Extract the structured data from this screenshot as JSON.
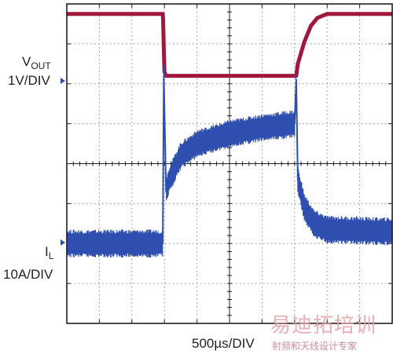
{
  "chart_data": {
    "type": "line",
    "title": "",
    "x_scale": {
      "label": "500µs/DIV",
      "divisions": 10,
      "units_per_div": 0.5,
      "unit": "ms"
    },
    "grid": true,
    "series": [
      {
        "name": "VOUT",
        "color": "#a0183c",
        "scale_label": "1V/DIV",
        "units": "div",
        "points": [
          [
            0.0,
            7.75
          ],
          [
            2.95,
            7.75
          ],
          [
            2.96,
            7.6
          ],
          [
            3.0,
            6.3
          ],
          [
            3.05,
            6.2
          ],
          [
            7.05,
            6.2
          ],
          [
            7.1,
            6.5
          ],
          [
            7.3,
            7.05
          ],
          [
            7.5,
            7.45
          ],
          [
            7.7,
            7.65
          ],
          [
            8.0,
            7.75
          ],
          [
            10.0,
            7.75
          ]
        ]
      },
      {
        "name": "IL",
        "color": "#2f4fb0",
        "scale_label": "10A/DIV",
        "units": "div",
        "band": 0.35,
        "points": [
          [
            0.0,
            2.0
          ],
          [
            2.95,
            2.0
          ],
          [
            2.98,
            6.2
          ],
          [
            3.05,
            3.3
          ],
          [
            3.15,
            3.6
          ],
          [
            3.5,
            4.2
          ],
          [
            4.0,
            4.5
          ],
          [
            5.0,
            4.75
          ],
          [
            6.0,
            4.9
          ],
          [
            7.0,
            5.0
          ],
          [
            7.05,
            6.1
          ],
          [
            7.1,
            3.6
          ],
          [
            7.3,
            2.9
          ],
          [
            7.6,
            2.5
          ],
          [
            8.0,
            2.35
          ],
          [
            10.0,
            2.3
          ]
        ]
      }
    ]
  },
  "labels": {
    "vout_main": "V",
    "vout_sub": "OUT",
    "vout_scale": "1V/DIV",
    "il_main": "I",
    "il_sub": "L",
    "il_scale": "10A/DIV",
    "time_scale": "500µs/DIV"
  },
  "watermark": {
    "line1": "易迪拓培训",
    "line2": "射频和天线设计专家"
  },
  "colors": {
    "frame": "#231f20",
    "grid": "#8c8c8c",
    "marker": "#2f4fb0",
    "watermark": "#e8a0a8"
  }
}
